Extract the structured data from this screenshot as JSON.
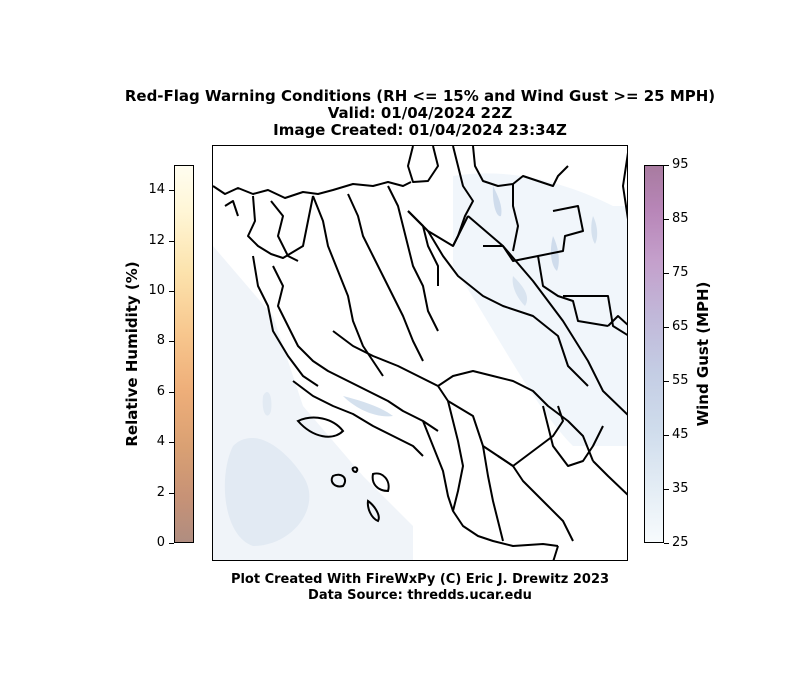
{
  "title": {
    "line1": "Red-Flag Warning Conditions (RH <= 15% and Wind Gust >= 25 MPH)",
    "line2": "Valid: 01/04/2024 22Z",
    "line3": "Image Created: 01/04/2024 23:34Z"
  },
  "left_colorbar": {
    "label": "Relative Humidity (%)",
    "range": [
      0,
      15
    ],
    "ticks": [
      "0",
      "2",
      "4",
      "6",
      "8",
      "10",
      "12",
      "14"
    ],
    "tick_values": [
      0,
      2,
      4,
      6,
      8,
      10,
      12,
      14
    ]
  },
  "right_colorbar": {
    "label": "Wind Gust (MPH)",
    "range": [
      25,
      95
    ],
    "ticks": [
      "25",
      "35",
      "45",
      "55",
      "65",
      "75",
      "85",
      "95"
    ],
    "tick_values": [
      25,
      35,
      45,
      55,
      65,
      75,
      85,
      95
    ]
  },
  "footer": {
    "line1": "Plot Created With FireWxPy (C) Eric J. Drewitz 2023",
    "line2": "Data Source: thredds.ucar.edu"
  },
  "colors": {
    "rh_low": "#b08d80",
    "rh_high": "#fffdf0",
    "gust_low": "#f7fbfd",
    "gust_high": "#a87ba0",
    "boundaries": "#000000"
  }
}
